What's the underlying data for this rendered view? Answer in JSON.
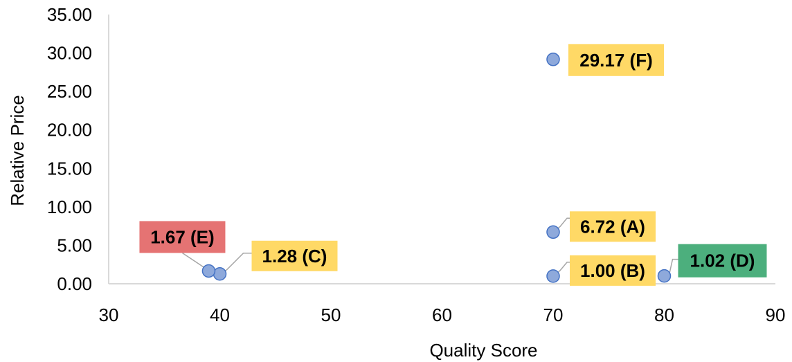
{
  "chart_data": {
    "type": "scatter",
    "xlabel": "Quality Score",
    "ylabel": "Relative Price",
    "xlim": [
      30,
      90
    ],
    "ylim": [
      0,
      35
    ],
    "x_ticks": [
      "30",
      "40",
      "50",
      "60",
      "70",
      "80",
      "90"
    ],
    "y_ticks": [
      "0.00",
      "5.00",
      "10.00",
      "15.00",
      "20.00",
      "25.00",
      "30.00",
      "35.00"
    ],
    "grid": false,
    "marker_color": "#8EA9DB",
    "marker_edge_color": "#4472C4",
    "points": [
      {
        "x": 70,
        "y": 6.72,
        "label": "6.72 (A)",
        "label_color": "#FFD966"
      },
      {
        "x": 70,
        "y": 1.0,
        "label": "1.00 (B)",
        "label_color": "#FFD966"
      },
      {
        "x": 40,
        "y": 1.28,
        "label": "1.28 (C)",
        "label_color": "#FFD966"
      },
      {
        "x": 80,
        "y": 1.02,
        "label": "1.02 (D)",
        "label_color": "#4CAF7D"
      },
      {
        "x": 39,
        "y": 1.67,
        "label": "1.67 (E)",
        "label_color": "#E57373"
      },
      {
        "x": 70,
        "y": 29.17,
        "label": "29.17 (F)",
        "label_color": "#FFD966"
      }
    ]
  }
}
